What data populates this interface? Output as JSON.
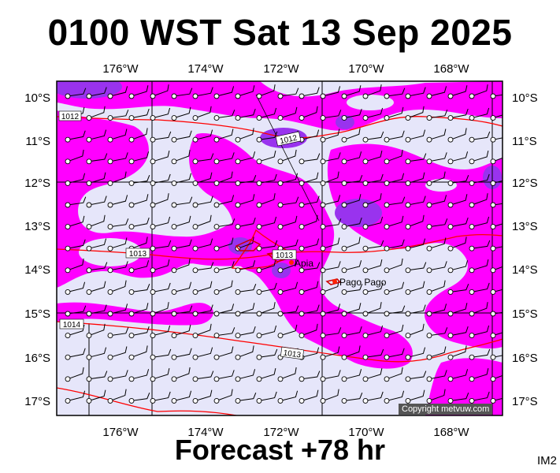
{
  "header": {
    "title": "0100 WST Sat 13 Sep 2025"
  },
  "footer": {
    "forecast": "Forecast +78 hr",
    "code": "IM2"
  },
  "map": {
    "copyright": "Copyright metvuw.com",
    "lon_labels": [
      "176°W",
      "174°W",
      "172°W",
      "170°W",
      "168°W"
    ],
    "lat_labels": [
      "10°S",
      "11°S",
      "12°S",
      "13°S",
      "14°S",
      "15°S",
      "16°S",
      "17°S"
    ],
    "isobar_labels": [
      "1012",
      "1012",
      "1013",
      "1013",
      "1014",
      "1013"
    ],
    "places": [
      "Apia",
      "Pago Pago"
    ],
    "colors": {
      "background": "#e6e6fa",
      "rain_moderate": "#ff00ff",
      "rain_heavy": "#9933ee",
      "isobar": "#ff0000"
    }
  }
}
